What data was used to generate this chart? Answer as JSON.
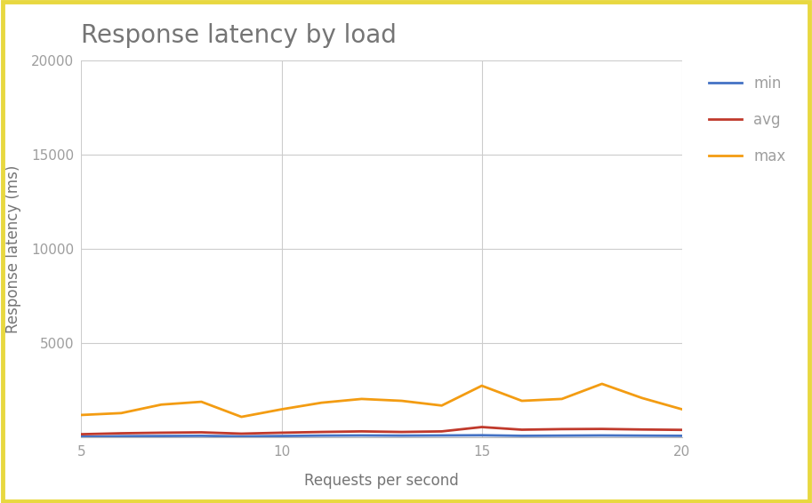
{
  "title": "Response latency by load",
  "xlabel": "Requests per second",
  "ylabel": "Response latency (ms)",
  "xlim": [
    5,
    20
  ],
  "ylim": [
    0,
    20000
  ],
  "yticks": [
    0,
    5000,
    10000,
    15000,
    20000
  ],
  "xticks": [
    5,
    10,
    15,
    20
  ],
  "background_color": "#ffffff",
  "border_color": "#e8d840",
  "grid_color": "#cccccc",
  "x": [
    5,
    6,
    7,
    8,
    9,
    10,
    11,
    12,
    13,
    14,
    15,
    16,
    17,
    18,
    19,
    20
  ],
  "min": [
    50,
    75,
    85,
    95,
    65,
    85,
    105,
    115,
    105,
    115,
    125,
    95,
    105,
    115,
    105,
    95
  ],
  "avg": [
    180,
    230,
    260,
    280,
    210,
    260,
    300,
    330,
    300,
    330,
    560,
    420,
    450,
    460,
    430,
    410
  ],
  "max": [
    1200,
    1300,
    1750,
    1900,
    1100,
    1500,
    1850,
    2050,
    1950,
    1700,
    2750,
    1950,
    2050,
    2850,
    2100,
    1500
  ],
  "min_color": "#4472c4",
  "avg_color": "#c0392b",
  "max_color": "#f39c12",
  "min_label": "min",
  "avg_label": "avg",
  "max_label": "max",
  "line_width": 2.0,
  "title_fontsize": 20,
  "axis_label_fontsize": 12,
  "tick_fontsize": 11,
  "legend_fontsize": 12,
  "title_color": "#757575",
  "axis_label_color": "#757575",
  "tick_color": "#9e9e9e"
}
